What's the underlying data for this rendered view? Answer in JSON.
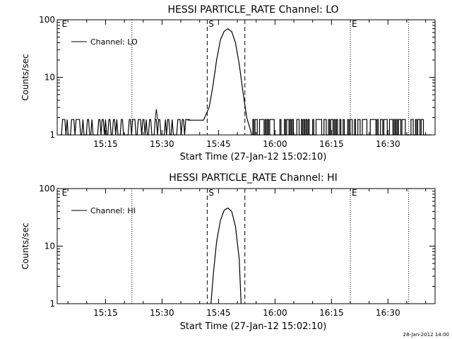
{
  "chart_data": [
    {
      "type": "line",
      "title": "HESSI PARTICLE_RATE Channel: LO",
      "xlabel": "Start Time (27-Jan-12 15:02:10)",
      "ylabel": "Counts/sec",
      "yscale": "log",
      "ylim": [
        1,
        100
      ],
      "xlim": [
        "15:02:10",
        "16:42:30"
      ],
      "x_ticks": [
        "15:15",
        "15:30",
        "15:45",
        "16:00",
        "16:15",
        "16:30"
      ],
      "y_ticks": [
        "1",
        "10",
        "100"
      ],
      "legend": {
        "entries": [
          "Channel: LO"
        ],
        "position": "top-left"
      },
      "grid": false,
      "markers": [
        {
          "label": "E",
          "time": "15:03:00",
          "style": "none"
        },
        {
          "label": "",
          "time": "15:22:00",
          "style": "dotted"
        },
        {
          "label": "S",
          "time": "15:42:00",
          "style": "dashed"
        },
        {
          "label": "",
          "time": "15:52:00",
          "style": "dashed"
        },
        {
          "label": "E",
          "time": "16:20:00",
          "style": "dotted"
        },
        {
          "label": "",
          "time": "16:35:30",
          "style": "dotted"
        }
      ],
      "series": [
        {
          "name": "Channel: LO",
          "background_level": [
            1,
            1.85
          ],
          "x": [
            "15:37:00",
            "15:41:00",
            "15:42:30",
            "15:43:30",
            "15:44:30",
            "15:45:30",
            "15:46:30",
            "15:47:30",
            "15:48:30",
            "15:49:30",
            "15:50:30",
            "15:51:30",
            "15:52:30",
            "15:53:30"
          ],
          "y": [
            1.8,
            1.8,
            3,
            7,
            20,
            45,
            63,
            70,
            62,
            40,
            17,
            5.5,
            2,
            1.2
          ]
        }
      ]
    },
    {
      "type": "line",
      "title": "HESSI PARTICLE_RATE Channel: HI",
      "xlabel": "Start Time (27-Jan-12 15:02:10)",
      "ylabel": "Counts/sec",
      "yscale": "log",
      "ylim": [
        1,
        100
      ],
      "xlim": [
        "15:02:10",
        "16:42:30"
      ],
      "x_ticks": [
        "15:15",
        "15:30",
        "15:45",
        "16:00",
        "16:15",
        "16:30"
      ],
      "y_ticks": [
        "1",
        "10",
        "100"
      ],
      "legend": {
        "entries": [
          "Channel: HI"
        ],
        "position": "top-left"
      },
      "grid": false,
      "markers": [
        {
          "label": "E",
          "time": "15:03:00",
          "style": "none"
        },
        {
          "label": "",
          "time": "15:22:00",
          "style": "dotted"
        },
        {
          "label": "S",
          "time": "15:42:00",
          "style": "dashed"
        },
        {
          "label": "",
          "time": "15:52:00",
          "style": "dashed"
        },
        {
          "label": "E",
          "time": "16:20:00",
          "style": "dotted"
        },
        {
          "label": "",
          "time": "16:35:30",
          "style": "dotted"
        }
      ],
      "series": [
        {
          "name": "Channel: HI",
          "x": [
            "15:43:00",
            "15:43:40",
            "15:44:30",
            "15:45:30",
            "15:46:30",
            "15:47:30",
            "15:48:30",
            "15:49:30",
            "15:50:30",
            "15:51:00"
          ],
          "y": [
            1,
            3.5,
            12,
            28,
            42,
            46,
            40,
            22,
            6,
            1
          ]
        }
      ]
    }
  ],
  "footer": {
    "timestamp": "28-Jan-2012 14:00"
  }
}
